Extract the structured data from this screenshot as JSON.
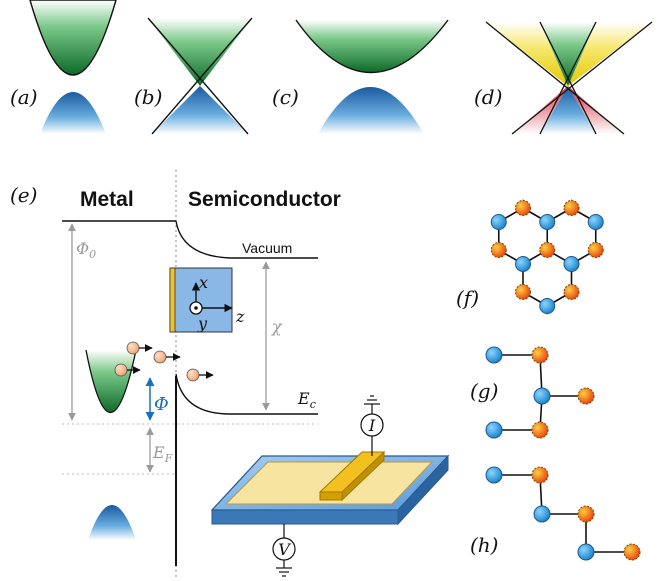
{
  "panels": {
    "a": "(a)",
    "b": "(b)",
    "c": "(c)",
    "d": "(d)",
    "e": "(e)",
    "f": "(f)",
    "g": "(g)",
    "h": "(h)"
  },
  "junction": {
    "metal_label": "Metal",
    "semiconductor_label": "Semiconductor",
    "vacuum_label": "Vacuum",
    "phi0": "Φ₀",
    "chi": "χ",
    "phi": "Φ",
    "ec": "E꜀",
    "ef": "E_F",
    "ec_main": "E",
    "ec_sub": "c",
    "ef_main": "E",
    "ef_sub": "F",
    "phi0_main": "Φ",
    "phi0_sub": "0"
  },
  "axes": {
    "x": "x",
    "y": "y",
    "z": "z"
  },
  "meters": {
    "current": "I",
    "voltage": "V"
  },
  "colors": {
    "green": "#1e8a3a",
    "blue": "#2a7bc4",
    "yellow": "#f2dc28",
    "red": "#e0505a",
    "orange": "#f08a10",
    "atom_blue": "#2aa0e0",
    "phi_blue": "#1a6ec0",
    "grey": "#9a9a9a"
  }
}
